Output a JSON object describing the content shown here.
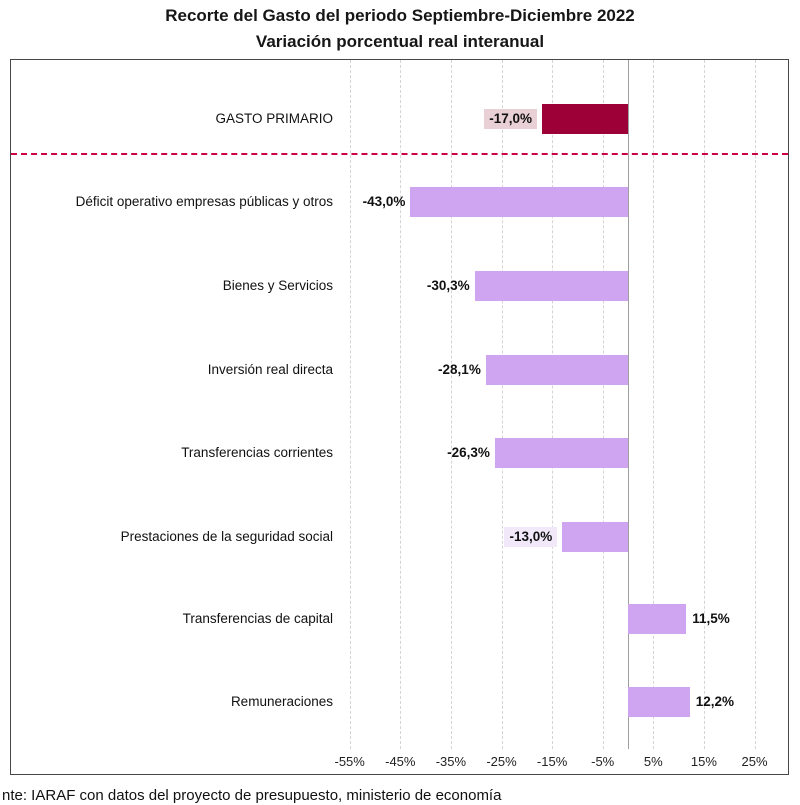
{
  "title": {
    "line1": "Recorte del Gasto del periodo Septiembre-Diciembre 2022",
    "line2": "Variación porcentual real interanual"
  },
  "footer": "nte: IARAF con datos del proyecto de presupuesto, ministerio de economía",
  "colors": {
    "bar": "#CFA4F0",
    "primary_bar": "#9C0037",
    "primary_label_bg": "#E9CFD6",
    "highlight_label_bg": "#F1E9F9",
    "separator": "#CC0044",
    "gridline": "#D4D4D4",
    "zero_axis": "#9E9E9E"
  },
  "chart_data": {
    "type": "bar",
    "orientation": "horizontal",
    "title": "Recorte del Gasto del periodo Septiembre-Diciembre 2022",
    "subtitle": "Variación porcentual real interanual",
    "unit": "percent, real year-over-year variation",
    "rows": [
      {
        "category": "GASTO PRIMARIO",
        "value": -17.0,
        "label": "-17,0%",
        "bar_color": "#9C0037",
        "label_bg_color": "#E9CFD6"
      },
      {
        "category": "Déficit operativo empresas públicas y otros",
        "value": -43.0,
        "label": "-43,0%"
      },
      {
        "category": "Bienes y Servicios",
        "value": -30.3,
        "label": "-30,3%"
      },
      {
        "category": "Inversión real directa",
        "value": -28.1,
        "label": "-28,1%"
      },
      {
        "category": "Transferencias corrientes",
        "value": -26.3,
        "label": "-26,3%"
      },
      {
        "category": "Prestaciones de la seguridad social",
        "value": -13.0,
        "label": "-13,0%",
        "label_bg_color": "#F1E9F9"
      },
      {
        "category": "Transferencias de capital",
        "value": 11.5,
        "label": "11,5%"
      },
      {
        "category": "Remuneraciones",
        "value": 12.2,
        "label": "12,2%"
      }
    ],
    "x_ticks": [
      -55,
      -45,
      -35,
      -25,
      -15,
      -5,
      5,
      15,
      25
    ],
    "x_tick_labels": [
      "-55%",
      "-45%",
      "-35%",
      "-25%",
      "-15%",
      "-5%",
      "5%",
      "15%",
      "25%"
    ],
    "xlim": [
      -58.5,
      31.5
    ],
    "grid": true,
    "legend": false,
    "separator_after_first_row": true
  }
}
